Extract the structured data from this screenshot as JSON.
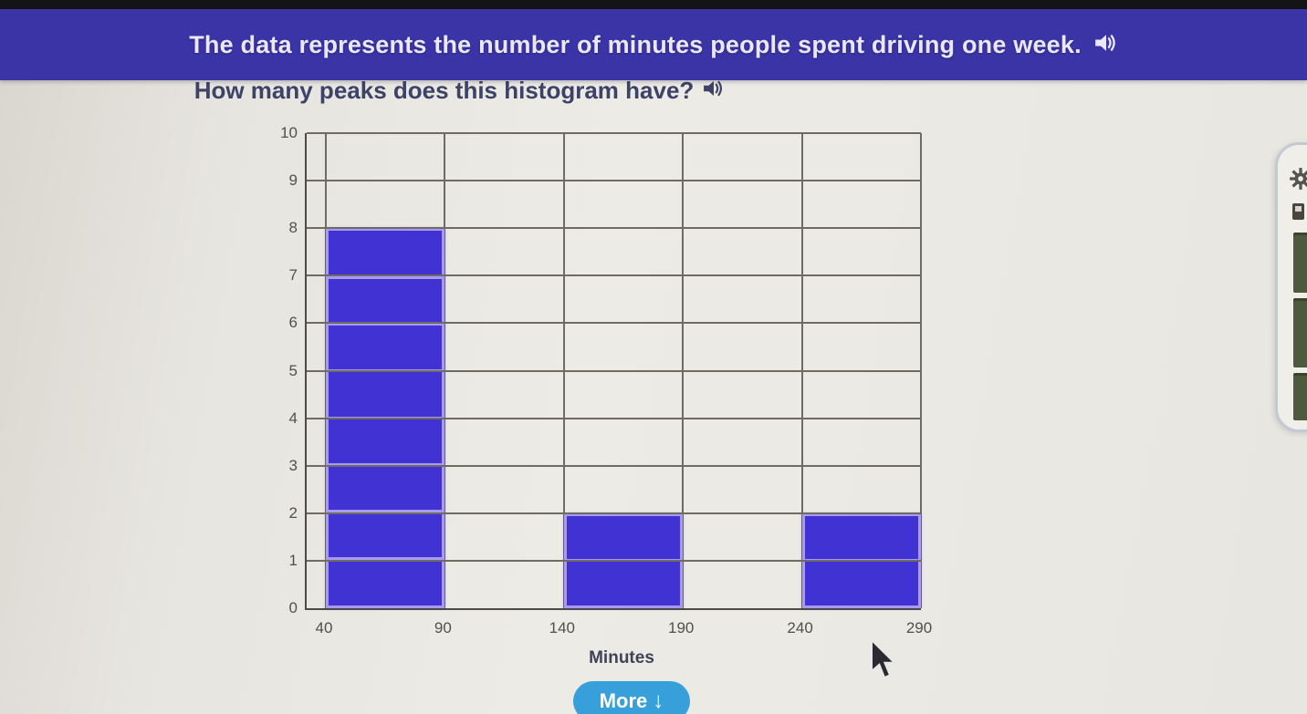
{
  "banner": {
    "text": "The data represents the number of minutes people spent driving one week.",
    "speaker_icon": "speaker-icon"
  },
  "question": {
    "text": "How many peaks does this histogram have?",
    "speaker_icon": "speaker-icon"
  },
  "chart_data": {
    "type": "bar",
    "subtype": "histogram",
    "title": "",
    "xlabel": "Minutes",
    "ylabel": "",
    "xlim": [
      40,
      290
    ],
    "ylim": [
      0,
      10
    ],
    "x_ticks": [
      40,
      90,
      140,
      190,
      240,
      290
    ],
    "y_ticks": [
      0,
      1,
      2,
      3,
      4,
      5,
      6,
      7,
      8,
      9,
      10
    ],
    "grid": true,
    "bins": [
      {
        "start": 40,
        "end": 90,
        "count": 8
      },
      {
        "start": 90,
        "end": 140,
        "count": 0
      },
      {
        "start": 140,
        "end": 190,
        "count": 2
      },
      {
        "start": 190,
        "end": 240,
        "count": 0
      },
      {
        "start": 240,
        "end": 290,
        "count": 2
      }
    ],
    "bar_fill_color": "#4132d3",
    "bar_border_color": "#a89bef",
    "grid_color": "#6f6b63",
    "axis_color": "#4f4b43"
  },
  "more_button": {
    "label": "More",
    "arrow": "↓"
  },
  "side_panel": {
    "icons": [
      "gear-icon",
      "badge-icon"
    ],
    "thumbnail_count": 3
  },
  "colors": {
    "banner_bg": "#3b34a6",
    "banner_text": "#e9e7f8",
    "question_text": "#3d4268",
    "page_bg": "#ebe9e3",
    "more_button_bg": "#37a0da"
  }
}
